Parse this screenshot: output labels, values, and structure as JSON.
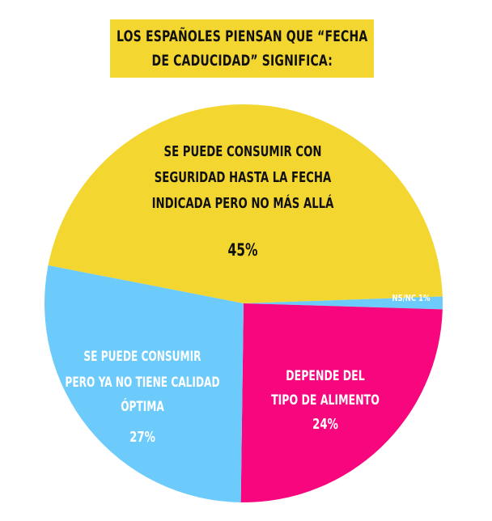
{
  "title": {
    "line1": "LOS ESPAÑOLES PIENSAN QUE “FECHA",
    "line2": "DE CADUCIDAD” SIGNIFICA:"
  },
  "colors": {
    "yellow": "#f4d631",
    "magenta": "#f7067d",
    "blue": "#6ccbfb"
  },
  "chart_data": {
    "type": "pie",
    "unit": "%",
    "slices": [
      {
        "value": 45,
        "value_label": "45%",
        "label_lines": [
          "SE PUEDE CONSUMIR CON",
          "SEGURIDAD HASTA LA FECHA",
          "INDICADA PERO NO MÁS ALLÁ"
        ],
        "color": "#f4d631"
      },
      {
        "value": 1,
        "value_label": "NS/NC 1%",
        "label_lines": [],
        "color": "#6ccbfb"
      },
      {
        "value": 24,
        "value_label": "24%",
        "label_lines": [
          "DEPENDE DEL",
          "TIPO DE ALIMENTO"
        ],
        "color": "#f7067d"
      },
      {
        "value": 27,
        "value_label": "27%",
        "label_lines": [
          "SE PUEDE CONSUMIR",
          "PERO YA NO TIENE CALIDAD",
          "ÓPTIMA"
        ],
        "color": "#6ccbfb"
      }
    ]
  }
}
